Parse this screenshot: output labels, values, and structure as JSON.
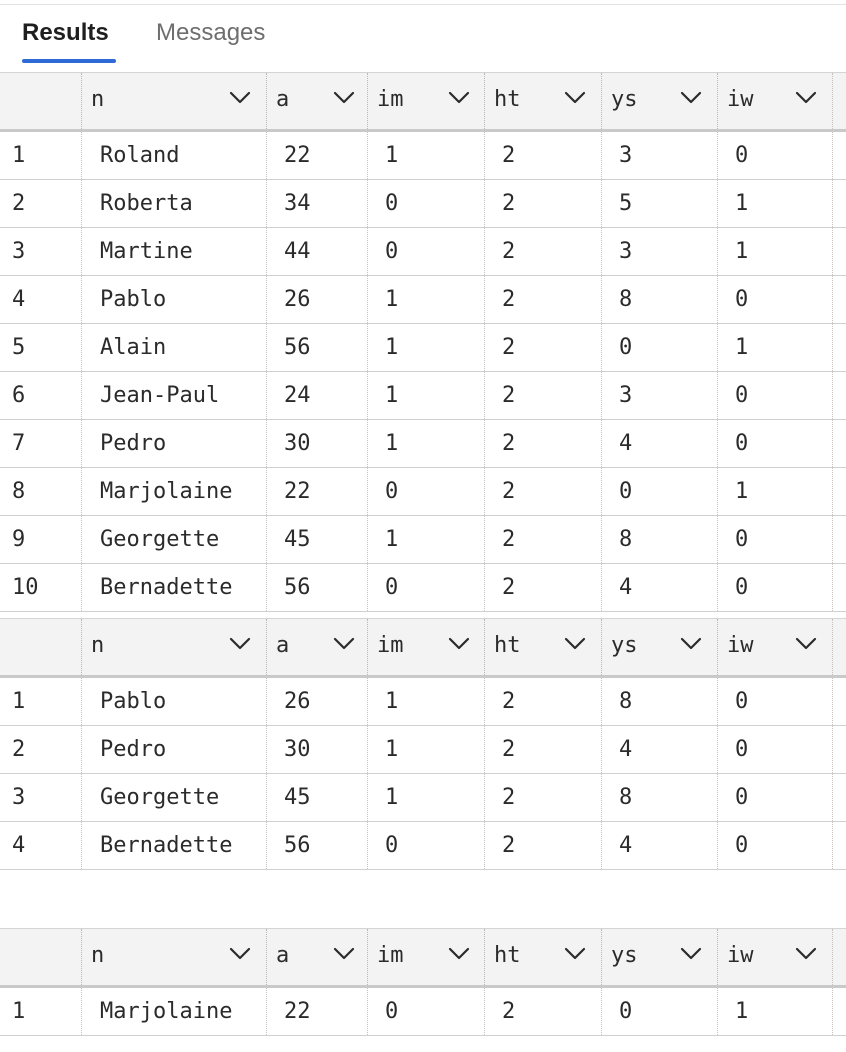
{
  "tabs": [
    {
      "label": "Results"
    },
    {
      "label": "Messages"
    }
  ],
  "columns": [
    "n",
    "a",
    "im",
    "ht",
    "ys",
    "iw"
  ],
  "grids": [
    {
      "rows": [
        [
          "1",
          "Roland",
          "22",
          "1",
          "2",
          "3",
          "0"
        ],
        [
          "2",
          "Roberta",
          "34",
          "0",
          "2",
          "5",
          "1"
        ],
        [
          "3",
          "Martine",
          "44",
          "0",
          "2",
          "3",
          "1"
        ],
        [
          "4",
          "Pablo",
          "26",
          "1",
          "2",
          "8",
          "0"
        ],
        [
          "5",
          "Alain",
          "56",
          "1",
          "2",
          "0",
          "1"
        ],
        [
          "6",
          "Jean-Paul",
          "24",
          "1",
          "2",
          "3",
          "0"
        ],
        [
          "7",
          "Pedro",
          "30",
          "1",
          "2",
          "4",
          "0"
        ],
        [
          "8",
          "Marjolaine",
          "22",
          "0",
          "2",
          "0",
          "1"
        ],
        [
          "9",
          "Georgette",
          "45",
          "1",
          "2",
          "8",
          "0"
        ],
        [
          "10",
          "Bernadette",
          "56",
          "0",
          "2",
          "4",
          "0"
        ]
      ]
    },
    {
      "rows": [
        [
          "1",
          "Pablo",
          "26",
          "1",
          "2",
          "8",
          "0"
        ],
        [
          "2",
          "Pedro",
          "30",
          "1",
          "2",
          "4",
          "0"
        ],
        [
          "3",
          "Georgette",
          "45",
          "1",
          "2",
          "8",
          "0"
        ],
        [
          "4",
          "Bernadette",
          "56",
          "0",
          "2",
          "4",
          "0"
        ]
      ]
    },
    {
      "rows": [
        [
          "1",
          "Marjolaine",
          "22",
          "0",
          "2",
          "0",
          "1"
        ]
      ]
    }
  ]
}
